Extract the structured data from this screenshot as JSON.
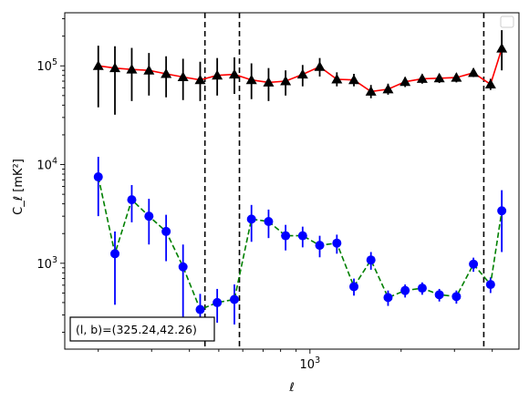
{
  "chart_data": {
    "type": "line",
    "xlabel": "ℓ",
    "ylabel": "C_ℓ  [mK²]",
    "xscale": "log",
    "yscale": "log",
    "xlim": [
      155,
      4900
    ],
    "ylim": [
      135,
      345000
    ],
    "x_tick_labels": [
      {
        "value": 1000,
        "base": "10",
        "exp": "3"
      }
    ],
    "y_tick_labels": [
      {
        "value": 1000,
        "base": "10",
        "exp": "3"
      },
      {
        "value": 10000,
        "base": "10",
        "exp": "4"
      },
      {
        "value": 100000,
        "base": "10",
        "exp": "5"
      }
    ],
    "vlines": [
      450,
      585,
      3750
    ],
    "annotation": "(l, b)=(325.24,42.26)",
    "legend_position": "upper right",
    "series": [
      {
        "color": "#ff0000",
        "errcolor": "#000000",
        "marker": "triangle",
        "linestyle": "solid",
        "points": [
          {
            "x": 200,
            "y": 100000,
            "lo": 38000,
            "hi": 160000
          },
          {
            "x": 227,
            "y": 95000,
            "lo": 32000,
            "hi": 158000
          },
          {
            "x": 258,
            "y": 92000,
            "lo": 44000,
            "hi": 152000
          },
          {
            "x": 294,
            "y": 90000,
            "lo": 50000,
            "hi": 135000
          },
          {
            "x": 335,
            "y": 83000,
            "lo": 48000,
            "hi": 125000
          },
          {
            "x": 381,
            "y": 77000,
            "lo": 45000,
            "hi": 118000
          },
          {
            "x": 434,
            "y": 72000,
            "lo": 44000,
            "hi": 110000
          },
          {
            "x": 494,
            "y": 80000,
            "lo": 50000,
            "hi": 120000
          },
          {
            "x": 563,
            "y": 82000,
            "lo": 52000,
            "hi": 122000
          },
          {
            "x": 641,
            "y": 72000,
            "lo": 46000,
            "hi": 106000
          },
          {
            "x": 730,
            "y": 68000,
            "lo": 44000,
            "hi": 95000
          },
          {
            "x": 831,
            "y": 70000,
            "lo": 50000,
            "hi": 90000
          },
          {
            "x": 946,
            "y": 82000,
            "lo": 62000,
            "hi": 102000
          },
          {
            "x": 1077,
            "y": 98000,
            "lo": 78000,
            "hi": 120000
          },
          {
            "x": 1227,
            "y": 73000,
            "lo": 62000,
            "hi": 86000
          },
          {
            "x": 1397,
            "y": 72000,
            "lo": 62000,
            "hi": 83000
          },
          {
            "x": 1590,
            "y": 55000,
            "lo": 47000,
            "hi": 64000
          },
          {
            "x": 1811,
            "y": 58000,
            "lo": 51000,
            "hi": 66000
          },
          {
            "x": 2062,
            "y": 69000,
            "lo": 61000,
            "hi": 77000
          },
          {
            "x": 2348,
            "y": 74000,
            "lo": 66000,
            "hi": 82000
          },
          {
            "x": 2674,
            "y": 75000,
            "lo": 67000,
            "hi": 83000
          },
          {
            "x": 3045,
            "y": 76000,
            "lo": 68000,
            "hi": 84000
          },
          {
            "x": 3467,
            "y": 85000,
            "lo": 77000,
            "hi": 94000
          },
          {
            "x": 3948,
            "y": 65000,
            "lo": 57000,
            "hi": 74000
          },
          {
            "x": 4300,
            "y": 150000,
            "lo": 90000,
            "hi": 230000
          }
        ]
      },
      {
        "color": "#008000",
        "errcolor": "#0000ff",
        "marker": "circle",
        "markercolor": "#0000ff",
        "linestyle": "dashed",
        "points": [
          {
            "x": 200,
            "y": 7500,
            "lo": 3000,
            "hi": 12000
          },
          {
            "x": 227,
            "y": 1250,
            "lo": 380,
            "hi": 2100
          },
          {
            "x": 258,
            "y": 4400,
            "lo": 2600,
            "hi": 6200
          },
          {
            "x": 294,
            "y": 3000,
            "lo": 1550,
            "hi": 4500
          },
          {
            "x": 335,
            "y": 2100,
            "lo": 1050,
            "hi": 3100
          },
          {
            "x": 381,
            "y": 920,
            "lo": 280,
            "hi": 1550
          },
          {
            "x": 434,
            "y": 340,
            "lo": 200,
            "hi": 490
          },
          {
            "x": 494,
            "y": 400,
            "lo": 250,
            "hi": 550
          },
          {
            "x": 563,
            "y": 430,
            "lo": 240,
            "hi": 610
          },
          {
            "x": 641,
            "y": 2800,
            "lo": 1650,
            "hi": 3900
          },
          {
            "x": 730,
            "y": 2650,
            "lo": 1800,
            "hi": 3500
          },
          {
            "x": 831,
            "y": 1900,
            "lo": 1350,
            "hi": 2450
          },
          {
            "x": 946,
            "y": 1900,
            "lo": 1450,
            "hi": 2350
          },
          {
            "x": 1077,
            "y": 1520,
            "lo": 1150,
            "hi": 1900
          },
          {
            "x": 1227,
            "y": 1600,
            "lo": 1250,
            "hi": 1950
          },
          {
            "x": 1397,
            "y": 580,
            "lo": 470,
            "hi": 700
          },
          {
            "x": 1590,
            "y": 1080,
            "lo": 860,
            "hi": 1300
          },
          {
            "x": 1811,
            "y": 450,
            "lo": 370,
            "hi": 530
          },
          {
            "x": 2062,
            "y": 530,
            "lo": 450,
            "hi": 610
          },
          {
            "x": 2348,
            "y": 560,
            "lo": 480,
            "hi": 640
          },
          {
            "x": 2674,
            "y": 480,
            "lo": 410,
            "hi": 550
          },
          {
            "x": 3045,
            "y": 460,
            "lo": 390,
            "hi": 530
          },
          {
            "x": 3467,
            "y": 980,
            "lo": 820,
            "hi": 1140
          },
          {
            "x": 3948,
            "y": 610,
            "lo": 500,
            "hi": 720
          },
          {
            "x": 4300,
            "y": 3400,
            "lo": 1300,
            "hi": 5500
          }
        ]
      }
    ]
  }
}
